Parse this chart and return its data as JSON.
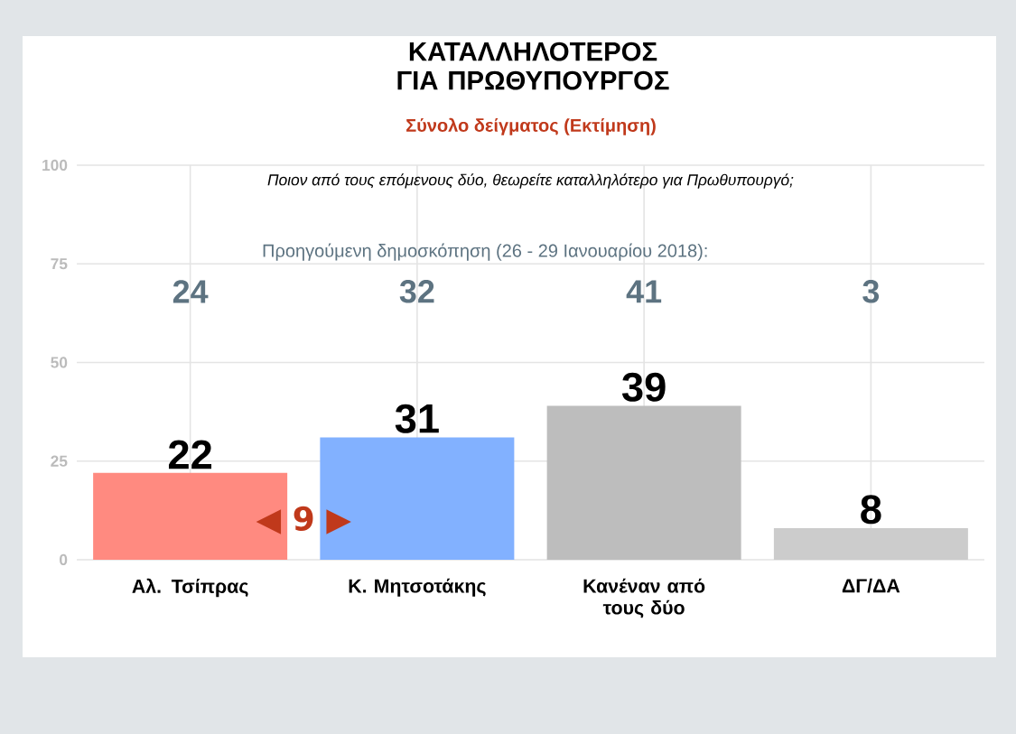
{
  "chart_data": {
    "type": "bar",
    "title": "ΚΑΤΑΛΛΗΛΟΤΕΡΟΣ ΓΙΑ ΠΡΩΘΥΠΟΥΡΓΟΣ",
    "subtitle": "Σύνολο δείγματος   (Εκτίμηση)",
    "categories": [
      "Αλ. Τσίπρας",
      "Κ. Μητσοτάκης",
      "Κανέναν από τους δύο",
      "ΔΓ/ΔΑ"
    ],
    "values": [
      22,
      31,
      39,
      8
    ],
    "colors": [
      "#ff8a80",
      "#82b1ff",
      "#bdbdbd",
      "#cccccc"
    ],
    "ylim": [
      0,
      100
    ],
    "yticks": [
      0,
      25,
      50,
      75,
      100
    ],
    "grid": true,
    "data_labels": true,
    "annotations": [
      "Ποιον από τους επόμενους δύο, θεωρείτε καταλληλότερο για Πρωθυπουργό;",
      "Προηγούμενη δημοσκόπηση (26 - 29 Ιανουαρίου 2018):",
      "24",
      "32",
      "41",
      "3",
      "◀ 9 ▶"
    ]
  }
}
